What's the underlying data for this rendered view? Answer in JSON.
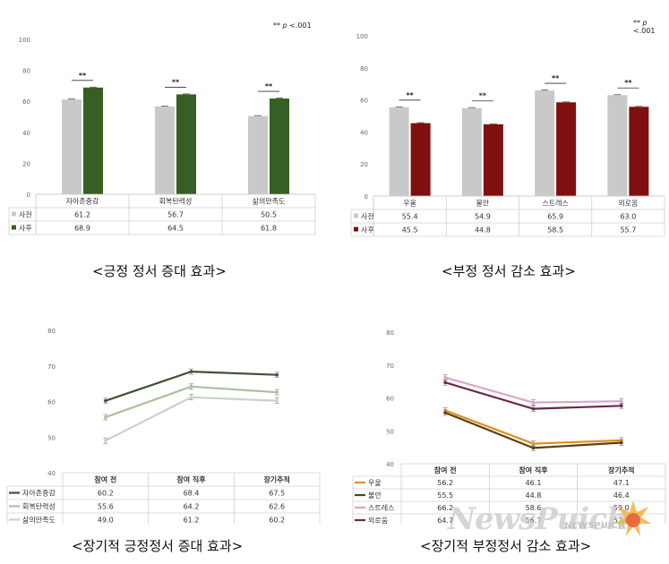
{
  "significance_note": "** p <.001",
  "significance_note_prefix": "** ",
  "significance_note_p": "p",
  "significance_note_rest": " <.001",
  "captions": {
    "top_left": "<긍정 정서 증대 효과>",
    "top_right": "<부정 정서 감소 효과>",
    "bottom_left": "<장기적 긍정정서 증대 효과>",
    "bottom_right": "<장기적 부정정서 감소 효과>"
  },
  "watermark": {
    "brand": "NewsPuich",
    "sub": "NEWSPUICH"
  },
  "colors": {
    "pre": "#c9c9c9",
    "post_positive": "#375e23",
    "post_negative": "#7f1010",
    "line_self_esteem": "#3f5333",
    "line_resilience": "#a9c19b",
    "line_life_satisfaction": "#c9d2c3",
    "line_depression": "#e0911c",
    "line_anxiety": "#5a4015",
    "line_stress": "#d7a7c7",
    "line_loneliness": "#6b2843"
  },
  "chart_data": [
    {
      "type": "bar",
      "id": "positive",
      "categories": [
        "자아존중감",
        "회복탄력성",
        "삶의만족도"
      ],
      "series": [
        {
          "name": "사전",
          "values": [
            61.2,
            56.7,
            50.5
          ]
        },
        {
          "name": "사후",
          "values": [
            68.9,
            64.5,
            61.8
          ]
        }
      ],
      "table_values": [
        [
          "61.2",
          "56.7",
          "50.5"
        ],
        [
          "68.9",
          "64.5",
          "61.8"
        ]
      ],
      "significance": [
        "**",
        "**",
        "**"
      ],
      "ylim": [
        0,
        100
      ],
      "yticks": [
        0,
        20,
        40,
        60,
        80,
        100
      ],
      "grid": false,
      "legend": "table-below"
    },
    {
      "type": "bar",
      "id": "negative",
      "categories": [
        "우울",
        "불안",
        "스트레스",
        "외로움"
      ],
      "series": [
        {
          "name": "사전",
          "values": [
            55.4,
            54.9,
            65.9,
            63.0
          ]
        },
        {
          "name": "사후",
          "values": [
            45.5,
            44.8,
            58.5,
            55.7
          ]
        }
      ],
      "table_values": [
        [
          "55.4",
          "54.9",
          "65.9",
          "63.0"
        ],
        [
          "45.5",
          "44.8",
          "58.5",
          "55.7"
        ]
      ],
      "significance": [
        "**",
        "**",
        "**",
        "**"
      ],
      "ylim": [
        0,
        100
      ],
      "yticks": [
        0,
        20,
        40,
        60,
        80,
        100
      ],
      "grid": false,
      "legend": "table-below"
    },
    {
      "type": "line",
      "id": "long_positive",
      "categories": [
        "참여 전",
        "참여 직후",
        "장기추적"
      ],
      "series": [
        {
          "name": "자아존중감",
          "values": [
            60.2,
            68.4,
            67.5
          ]
        },
        {
          "name": "회복탄력성",
          "values": [
            55.6,
            64.2,
            62.6
          ]
        },
        {
          "name": "삶의만족도",
          "values": [
            49.0,
            61.2,
            60.2
          ]
        }
      ],
      "table_values": [
        [
          "60.2",
          "68.4",
          "67.5"
        ],
        [
          "55.6",
          "64.2",
          "62.6"
        ],
        [
          "49.0",
          "61.2",
          "60.2"
        ]
      ],
      "ylim": [
        40,
        80
      ],
      "yticks": [
        40,
        50,
        60,
        70,
        80
      ],
      "grid": false,
      "legend": "table-below"
    },
    {
      "type": "line",
      "id": "long_negative",
      "categories": [
        "참여 전",
        "참여 직후",
        "장기추적"
      ],
      "series": [
        {
          "name": "우울",
          "values": [
            56.2,
            46.1,
            47.1
          ]
        },
        {
          "name": "불안",
          "values": [
            55.5,
            44.8,
            46.4
          ]
        },
        {
          "name": "스트레스",
          "values": [
            66.2,
            58.6,
            59.0
          ]
        },
        {
          "name": "외로움",
          "values": [
            64.7,
            56.7,
            57.6
          ]
        }
      ],
      "table_values": [
        [
          "56.2",
          "46.1",
          "47.1"
        ],
        [
          "55.5",
          "44.8",
          "46.4"
        ],
        [
          "66.2",
          "58.6",
          "59.0"
        ],
        [
          "64.7",
          "56.7",
          "57.6"
        ]
      ],
      "ylim": [
        40,
        80
      ],
      "yticks": [
        40,
        50,
        60,
        70,
        80
      ],
      "grid": false,
      "legend": "table-below"
    }
  ]
}
